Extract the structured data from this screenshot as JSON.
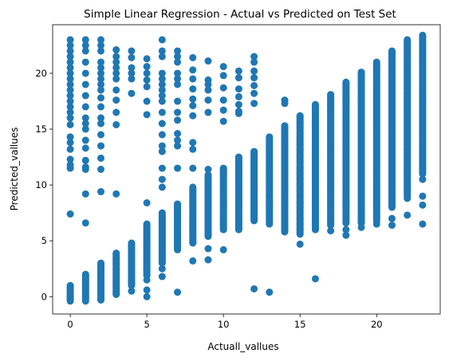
{
  "chart_data": {
    "type": "scatter",
    "title": "Simple Linear Regression - Actual vs Predicted on Test Set",
    "xlabel": "Actuall_vallues",
    "ylabel": "Predicted_vallues",
    "xlim": [
      -1.15,
      24.15
    ],
    "ylim": [
      -1.55,
      24.35
    ],
    "x_ticks": [
      0,
      5,
      10,
      15,
      20
    ],
    "y_ticks": [
      0,
      5,
      10,
      15,
      20
    ],
    "grid": false,
    "marker_color": "#1f77b4",
    "point_groups": [
      {
        "x": 0,
        "scattered": [
          23.0,
          22.5,
          22.0,
          21.5,
          21.0,
          20.5,
          20.0,
          19.5,
          19.0,
          18.5,
          18.0,
          17.5,
          17.0,
          16.5,
          16.0,
          15.4,
          14.3,
          13.8,
          13.2,
          12.3,
          11.8,
          11.5,
          7.4
        ],
        "runs": [
          [
            -0.4,
            1.0
          ]
        ]
      },
      {
        "x": 1,
        "scattered": [
          23.0,
          22.5,
          22.0,
          21.0,
          20.0,
          19.0,
          18.0,
          17.0,
          16.0,
          15.5,
          15.0,
          14.0,
          13.3,
          12.2,
          11.6,
          11.4,
          9.2,
          6.6
        ],
        "runs": [
          [
            -0.4,
            2.0
          ]
        ]
      },
      {
        "x": 2,
        "scattered": [
          23.0,
          22.5,
          22.0,
          21.0,
          20.5,
          20.0,
          19.5,
          19.0,
          18.5,
          17.8,
          17.0,
          16.0,
          15.5,
          14.5,
          13.5,
          12.4,
          11.4,
          9.4
        ],
        "runs": [
          [
            -0.3,
            3.0
          ]
        ]
      },
      {
        "x": 3,
        "scattered": [
          22.1,
          21.5,
          21.0,
          20.5,
          20.0,
          19.5,
          18.5,
          17.6,
          16.5,
          15.4,
          9.2
        ],
        "runs": [
          [
            0.2,
            3.9
          ]
        ]
      },
      {
        "x": 4,
        "scattered": [
          22.0,
          21.4,
          20.5,
          20.0,
          19.5,
          18.2,
          1.2,
          0.5
        ],
        "runs": [
          [
            1.0,
            4.8
          ]
        ]
      },
      {
        "x": 5,
        "scattered": [
          21.3,
          20.6,
          20.0,
          19.4,
          18.8,
          17.5,
          16.3,
          8.4,
          2.5,
          1.5,
          0.6,
          0.0
        ],
        "runs": [
          [
            1.9,
            6.5
          ]
        ]
      },
      {
        "x": 6,
        "scattered": [
          23.0,
          22.0,
          21.5,
          20.0,
          19.5,
          19.0,
          18.5,
          18.0,
          17.5,
          16.5,
          15.5,
          14.5,
          13.5,
          13.0,
          11.5,
          10.5,
          9.8,
          2.5,
          1.8
        ],
        "runs": [
          [
            3.0,
            7.5
          ]
        ]
      },
      {
        "x": 7,
        "scattered": [
          22.0,
          21.5,
          21.0,
          20.0,
          19.5,
          19.0,
          17.5,
          16.5,
          15.8,
          14.6,
          14.0,
          13.5,
          11.5,
          0.4
        ],
        "runs": [
          [
            4.2,
            8.3
          ]
        ]
      },
      {
        "x": 8,
        "scattered": [
          21.4,
          20.3,
          19.5,
          18.6,
          17.7,
          17.1,
          16.2,
          13.8,
          13.2,
          11.5,
          3.2
        ],
        "runs": [
          [
            4.8,
            9.8
          ]
        ]
      },
      {
        "x": 9,
        "scattered": [
          21.1,
          19.4,
          19.0,
          18.5,
          17.6,
          16.5,
          11.4,
          4.3,
          3.3
        ],
        "runs": [
          [
            5.4,
            10.9
          ]
        ]
      },
      {
        "x": 10,
        "scattered": [
          20.6,
          19.8,
          18.7,
          17.6,
          16.7,
          15.7,
          11.4,
          4.2
        ],
        "runs": [
          [
            6.0,
            11.5
          ]
        ]
      },
      {
        "x": 11,
        "scattered": [
          20.2,
          19.6,
          18.6,
          17.9,
          17.2,
          16.6,
          16.4
        ],
        "runs": [
          [
            6.0,
            12.5
          ]
        ]
      },
      {
        "x": 12,
        "scattered": [
          21.5,
          21.0,
          20.2,
          19.6,
          18.9,
          18.2,
          17.3,
          0.7
        ],
        "runs": [
          [
            6.8,
            13.0
          ]
        ]
      },
      {
        "x": 13,
        "scattered": [
          0.4
        ],
        "runs": [
          [
            6.5,
            14.3
          ]
        ]
      },
      {
        "x": 14,
        "scattered": [
          17.6,
          17.3
        ],
        "runs": [
          [
            5.8,
            15.3
          ]
        ]
      },
      {
        "x": 15,
        "scattered": [
          4.7
        ],
        "runs": [
          [
            5.6,
            16.2
          ]
        ]
      },
      {
        "x": 16,
        "scattered": [
          1.6
        ],
        "runs": [
          [
            6.0,
            17.2
          ]
        ]
      },
      {
        "x": 17,
        "scattered": [
          5.9
        ],
        "runs": [
          [
            6.4,
            18.1
          ]
        ]
      },
      {
        "x": 18,
        "scattered": [
          6.6,
          6.0,
          5.5
        ],
        "runs": [
          [
            6.8,
            19.2
          ]
        ]
      },
      {
        "x": 19,
        "scattered": [
          6.2
        ],
        "runs": [
          [
            6.6,
            20.1
          ]
        ]
      },
      {
        "x": 20,
        "scattered": [
          6.5
        ],
        "runs": [
          [
            6.8,
            21.0
          ]
        ]
      },
      {
        "x": 21,
        "scattered": [
          6.4,
          7.0,
          9.8
        ],
        "runs": [
          [
            8.0,
            22.0
          ]
        ]
      },
      {
        "x": 22,
        "scattered": [
          7.3,
          8.8
        ],
        "runs": [
          [
            9.0,
            23.0
          ]
        ]
      },
      {
        "x": 23,
        "scattered": [
          6.5,
          8.2,
          9.0,
          10.5
        ],
        "runs": [
          [
            11.0,
            23.4
          ]
        ]
      }
    ]
  }
}
